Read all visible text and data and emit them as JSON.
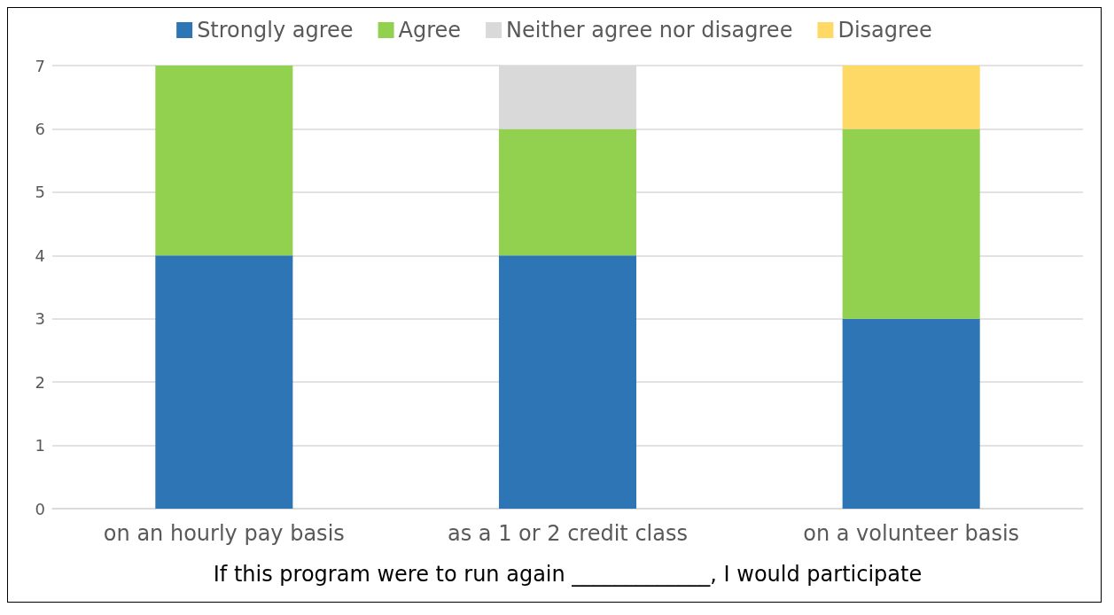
{
  "chart_data": {
    "type": "bar",
    "stacked": true,
    "xlabel": "If this program were to run again _____________, I would participate",
    "categories": [
      "on an hourly pay basis",
      "as a 1 or 2 credit class",
      "on a volunteer basis"
    ],
    "series": [
      {
        "name": "Strongly agree",
        "color": "#2e75b6",
        "values": [
          4,
          4,
          3
        ]
      },
      {
        "name": "Agree",
        "color": "#92d050",
        "values": [
          3,
          2,
          3
        ]
      },
      {
        "name": "Neither agree nor disagree",
        "color": "#d9d9d9",
        "values": [
          0,
          1,
          0
        ]
      },
      {
        "name": "Disagree",
        "color": "#ffd966",
        "values": [
          0,
          0,
          1
        ]
      }
    ],
    "ylim": [
      0,
      7
    ],
    "yticks": [
      0,
      1,
      2,
      3,
      4,
      5,
      6,
      7
    ],
    "grid": "y",
    "legend": "top"
  }
}
